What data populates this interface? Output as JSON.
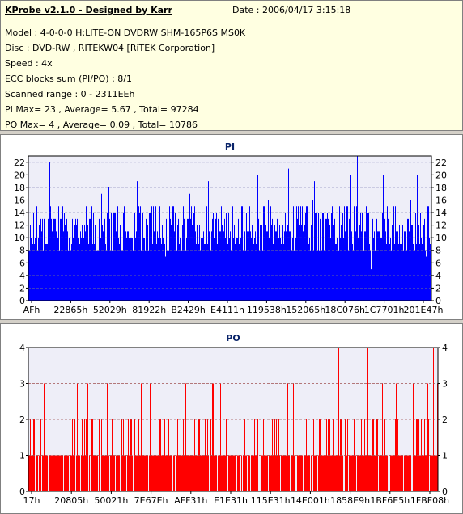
{
  "info": {
    "title": "KProbe v2.1.0 - Designed by Karr",
    "date": "Date : 2006/04/17 3:15:18",
    "lines": [
      "Model : 4-0-0-0 H:LITE-ON DVDRW SHM-165P6S MS0K",
      "Disc : DVD-RW , RITEKW04 [RiTEK Corporation]",
      "Speed : 4x",
      "ECC blocks sum (PI/PO) : 8/1",
      "Scanned range : 0 - 2311EEh",
      "PI Max= 23 , Average= 5.67 , Total= 97284",
      "PO Max= 4 , Average= 0.09 , Total= 10786"
    ]
  },
  "chart_data": [
    {
      "type": "bar",
      "title": "PI",
      "ylim": [
        0,
        23
      ],
      "yticks": [
        0,
        2,
        4,
        6,
        8,
        10,
        12,
        14,
        16,
        18,
        20,
        22
      ],
      "xticks": [
        "AFh",
        "22865h",
        "52029h",
        "81922h",
        "B2429h",
        "E4111h",
        "119538h",
        "152065h",
        "18C076h",
        "1C7701h",
        "201E47h"
      ],
      "color": "#0000ff",
      "grid": true,
      "baseline": 10,
      "spread": 7,
      "peaks": [
        [
          26,
          22
        ],
        [
          134,
          19
        ],
        [
          222,
          19
        ],
        [
          283,
          20
        ],
        [
          321,
          21
        ],
        [
          353,
          19
        ],
        [
          398,
          20
        ],
        [
          406,
          23
        ],
        [
          438,
          20
        ],
        [
          480,
          20
        ]
      ]
    },
    {
      "type": "bar",
      "title": "PO",
      "ylim": [
        0,
        4
      ],
      "yticks": [
        0,
        1,
        2,
        3,
        4
      ],
      "xticks": [
        "17h",
        "20805h",
        "50021h",
        "7E67Eh",
        "AFF31h",
        "E1E31h",
        "115E31h",
        "14E001h",
        "1858E9h",
        "1BF6E5h",
        "1FBF08h"
      ],
      "color": "#ff0000",
      "grid": true,
      "peaks": [
        [
          60,
          3
        ],
        [
          150,
          3
        ],
        [
          245,
          3
        ],
        [
          320,
          3
        ],
        [
          383,
          4
        ],
        [
          419,
          4
        ],
        [
          475,
          3
        ],
        [
          500,
          4
        ]
      ]
    }
  ]
}
